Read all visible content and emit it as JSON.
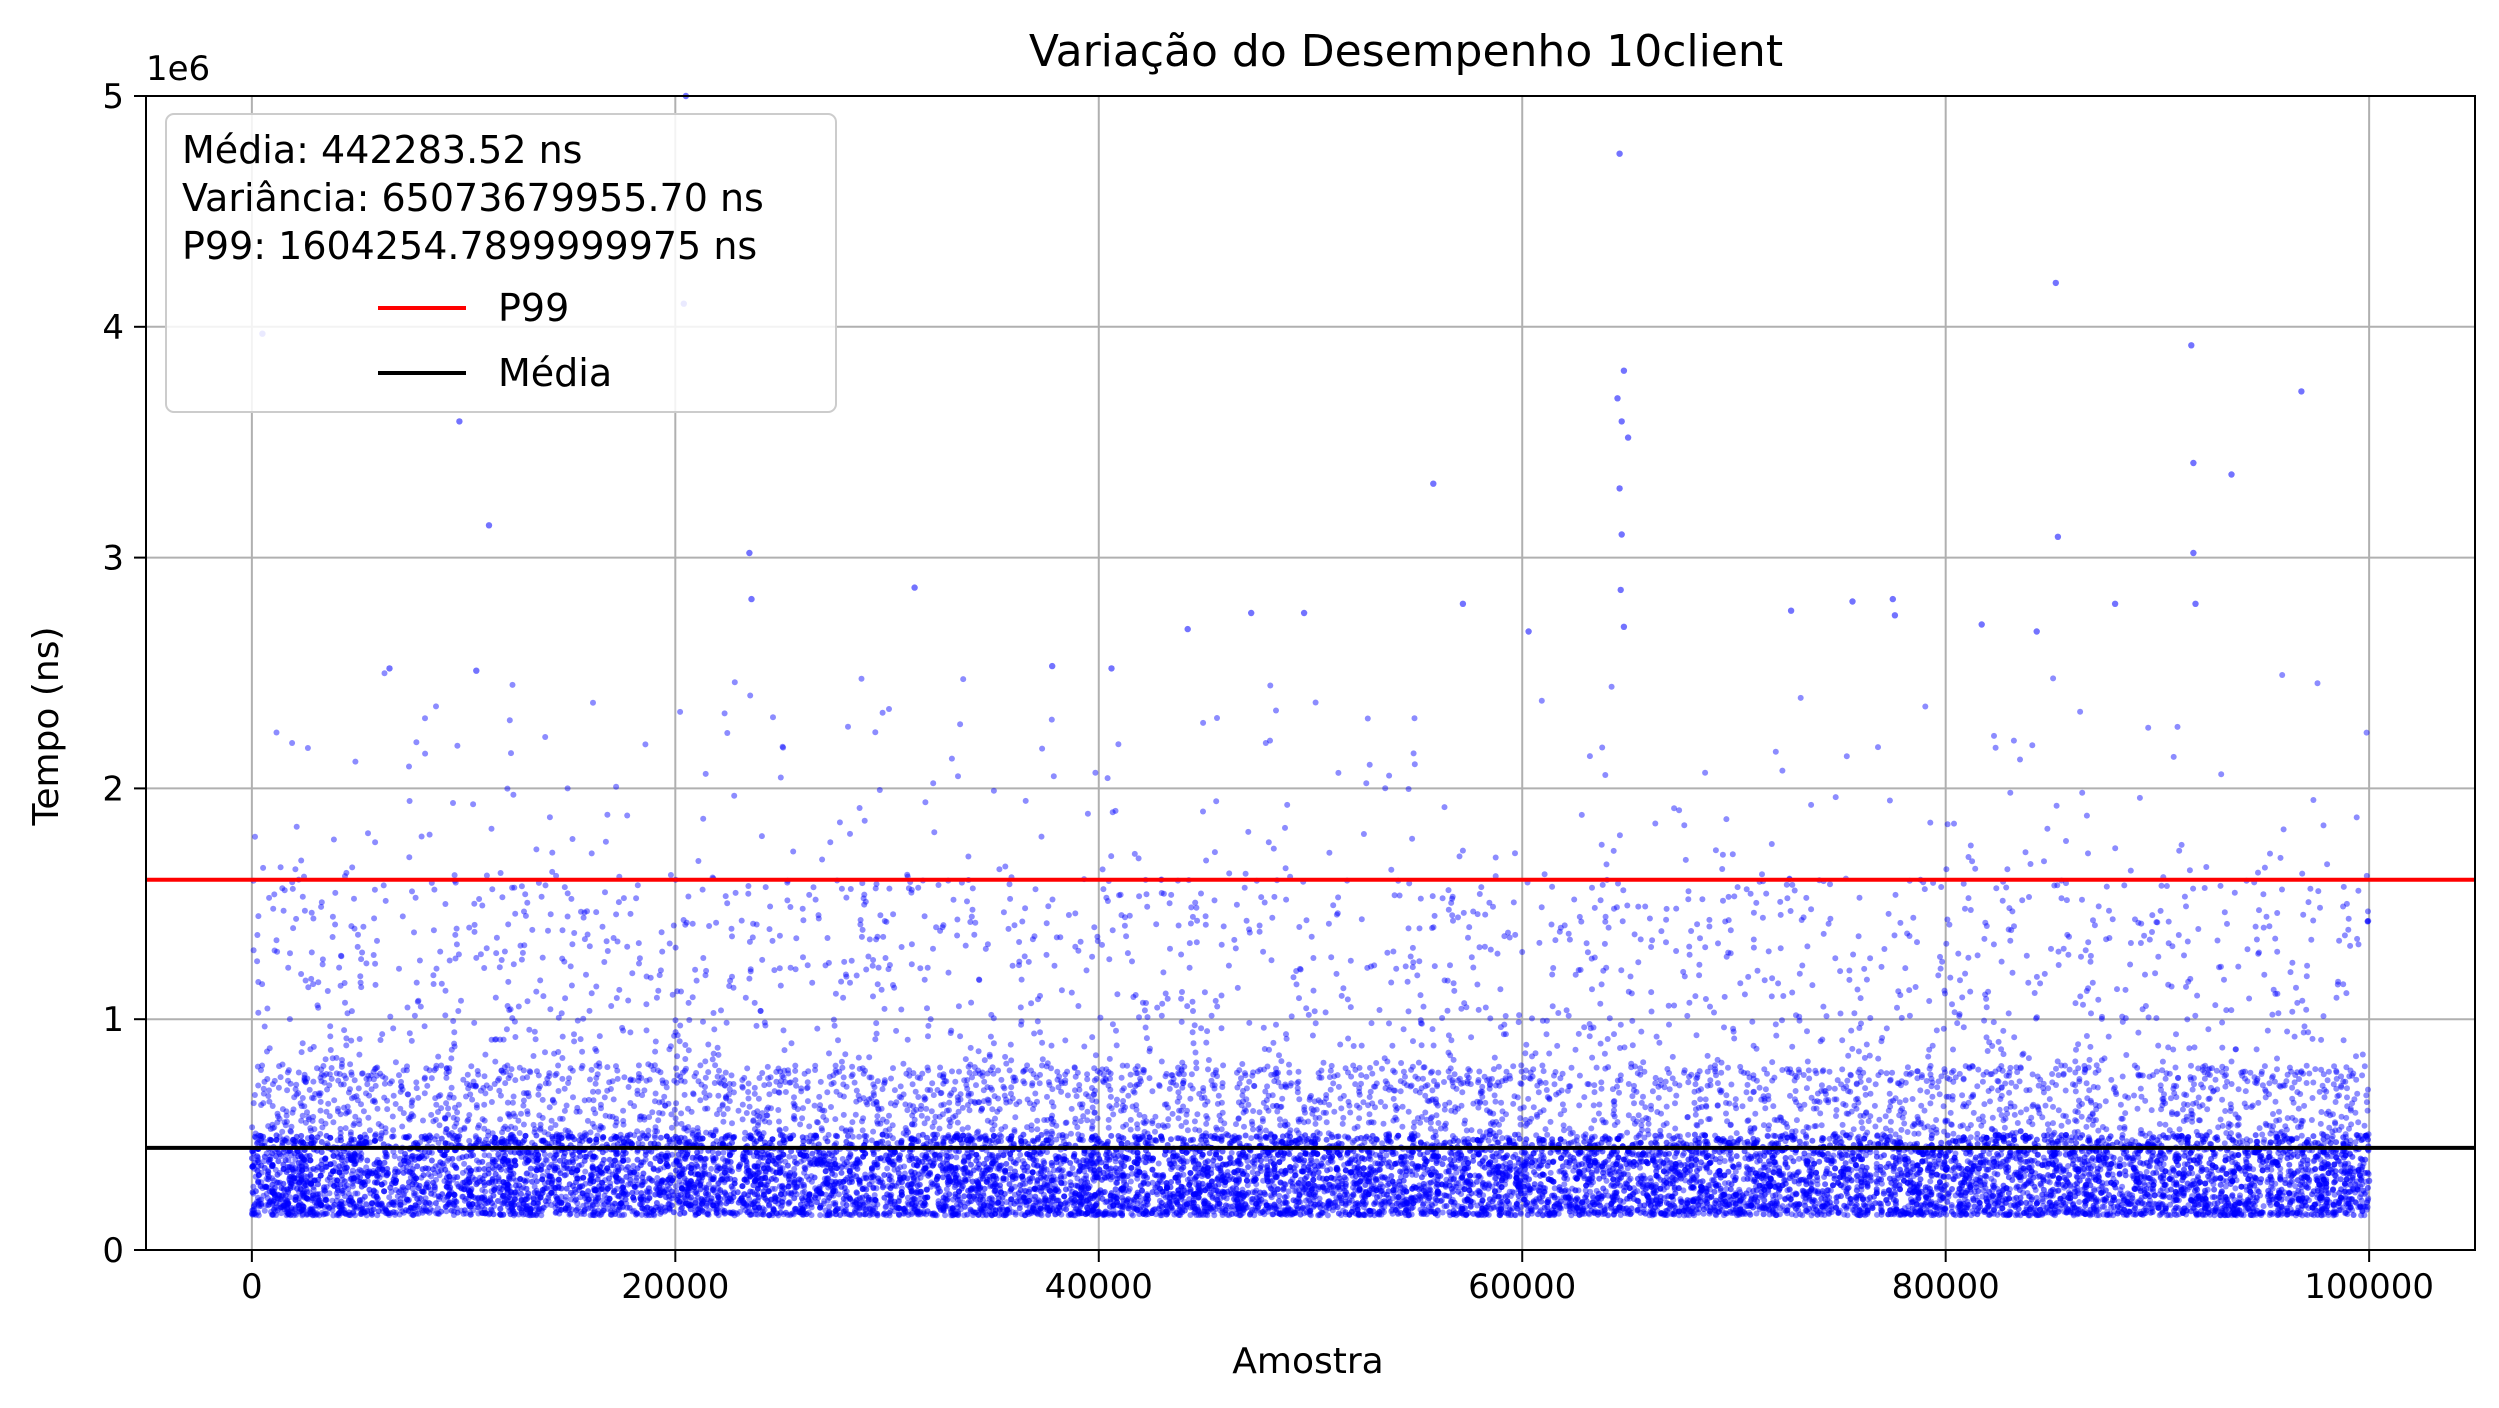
{
  "chart_data": {
    "type": "scatter",
    "title": "Variação do Desempenho 10client",
    "xlabel": "Amostra",
    "ylabel": "Tempo (ns)",
    "y_offset_label": "1e6",
    "xlim": [
      -5000,
      105000
    ],
    "ylim": [
      0,
      5000000
    ],
    "x_ticks": [
      0,
      20000,
      40000,
      60000,
      80000,
      100000
    ],
    "x_tick_labels": [
      "0",
      "20000",
      "40000",
      "60000",
      "80000",
      "100000"
    ],
    "y_ticks": [
      0,
      1000000,
      2000000,
      3000000,
      4000000,
      5000000
    ],
    "y_tick_labels": [
      "0",
      "1",
      "2",
      "3",
      "4",
      "5"
    ],
    "grid": true,
    "legend_position": "top-left",
    "stats": {
      "mean_text": "Média: 442283.52 ns",
      "variance_text": "Variância: 65073679955.70 ns",
      "p99_text": "P99: 1604254.7899999975 ns"
    },
    "series": [
      {
        "type": "scatter",
        "color": "#0000ff",
        "n_points": 100000,
        "x_range": [
          0,
          100000
        ],
        "typical_min": 120000,
        "dense_band": [
          150000,
          800000
        ],
        "outliers": [
          [
            500,
            3970000
          ],
          [
            9800,
            3590000
          ],
          [
            11200,
            3140000
          ],
          [
            6500,
            2520000
          ],
          [
            10600,
            2510000
          ],
          [
            20400,
            4100000
          ],
          [
            20500,
            5000000
          ],
          [
            23500,
            3020000
          ],
          [
            23600,
            2820000
          ],
          [
            31300,
            2870000
          ],
          [
            37800,
            2530000
          ],
          [
            40600,
            2520000
          ],
          [
            44200,
            2690000
          ],
          [
            47200,
            2760000
          ],
          [
            49700,
            2760000
          ],
          [
            55800,
            3320000
          ],
          [
            57200,
            2800000
          ],
          [
            60300,
            2680000
          ],
          [
            64600,
            4750000
          ],
          [
            64800,
            3810000
          ],
          [
            64500,
            3690000
          ],
          [
            64700,
            3590000
          ],
          [
            65000,
            3520000
          ],
          [
            64600,
            3300000
          ],
          [
            64700,
            3100000
          ],
          [
            64650,
            2860000
          ],
          [
            64800,
            2700000
          ],
          [
            72700,
            2770000
          ],
          [
            75600,
            2810000
          ],
          [
            77500,
            2820000
          ],
          [
            77600,
            2750000
          ],
          [
            81700,
            2710000
          ],
          [
            84300,
            2680000
          ],
          [
            85200,
            4190000
          ],
          [
            85300,
            3090000
          ],
          [
            88000,
            2800000
          ],
          [
            91600,
            3920000
          ],
          [
            91700,
            3410000
          ],
          [
            91700,
            3020000
          ],
          [
            91800,
            2800000
          ],
          [
            93500,
            3360000
          ],
          [
            96800,
            3720000
          ],
          [
            100000,
            300000
          ]
        ]
      }
    ],
    "hlines": [
      {
        "name": "P99",
        "value": 1604254.79,
        "color": "#ff0000"
      },
      {
        "name": "Média",
        "value": 442283.52,
        "color": "#000000"
      }
    ]
  }
}
